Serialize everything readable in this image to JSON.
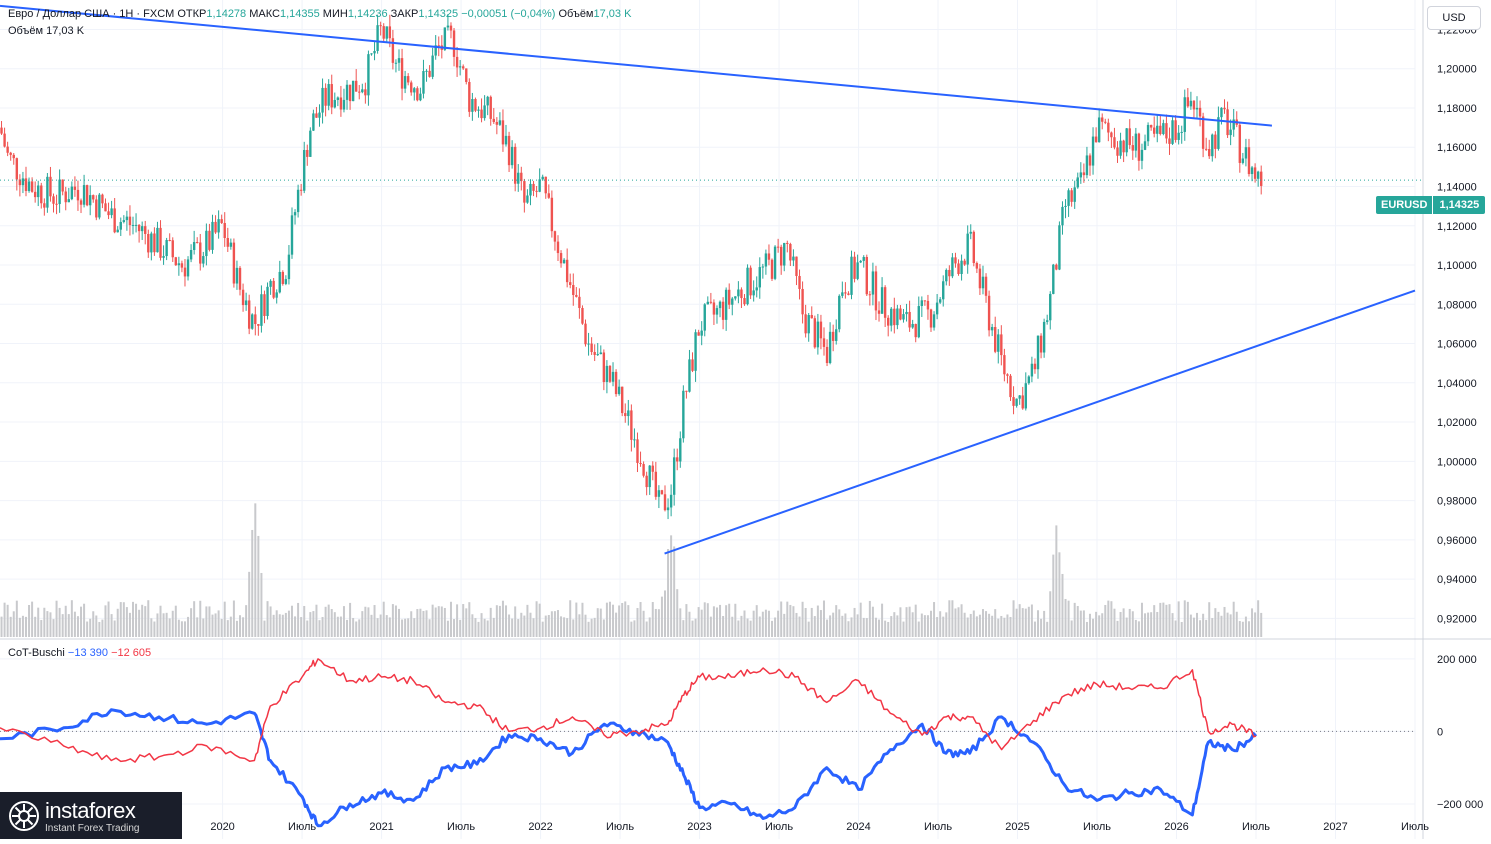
{
  "header": {
    "title": "Евро / Доллар США · 1Н · FXCM",
    "open_label": "ОТКР",
    "open_value": "1,14278",
    "high_label": "МАКС",
    "high_value": "1,14355",
    "low_label": "МИН",
    "low_value": "1,14236",
    "close_label": "ЗАКР",
    "close_value": "1,14325",
    "change_value": "−0,00051 (−0,04%)",
    "volume_label": "Объём",
    "volume_value": "17,03 K"
  },
  "volume_legend": {
    "label": "Объём",
    "value": "17,03 K"
  },
  "currency_button": "USD",
  "last_price_badge": {
    "symbol": "EURUSD",
    "price": "1,14325"
  },
  "cot_legend": {
    "name": "CoT-Buschi",
    "blue_value": "−13 390",
    "red_value": "−12 605"
  },
  "logo": {
    "name": "instaforex",
    "tagline": "Instant Forex Trading"
  },
  "colors": {
    "up_candle": "#26a69a",
    "down_candle": "#ef5350",
    "trendline": "#2962ff",
    "cot_blue": "#2962ff",
    "cot_red": "#f23645",
    "volume": "#c8c9cc"
  },
  "chart_data": [
    {
      "type": "candlestick",
      "symbol": "EURUSD",
      "price_axis_ticks": [
        "1,22000",
        "1,20000",
        "1,18000",
        "1,16000",
        "1,14000",
        "1,12000",
        "1,10000",
        "1,08000",
        "1,06000",
        "1,04000",
        "1,02000",
        "1,00000",
        "0,98000",
        "0,96000",
        "0,94000",
        "0,92000"
      ],
      "price_ticks_values": [
        1.22,
        1.2,
        1.18,
        1.16,
        1.14,
        1.12,
        1.1,
        1.08,
        1.06,
        1.04,
        1.02,
        1.0,
        0.98,
        0.96,
        0.94,
        0.92
      ],
      "ylim": [
        0.91,
        1.235
      ],
      "time_axis_labels": [
        "2020",
        "Июль",
        "2021",
        "Июль",
        "2022",
        "Июль",
        "2023",
        "Июль",
        "2024",
        "Июль",
        "2025",
        "Июль",
        "2026",
        "Июль",
        "2027",
        "Июль"
      ],
      "time_axis_values": [
        2020.0,
        2020.5,
        2021.0,
        2021.5,
        2022.0,
        2022.5,
        2023.0,
        2023.5,
        2024.0,
        2024.5,
        2025.0,
        2025.5,
        2026.0,
        2026.5,
        2027.0,
        2027.5
      ],
      "xlim": [
        2018.6,
        2027.5
      ],
      "last_price": 1.14325,
      "close_path": [
        [
          2018.6,
          1.17
        ],
        [
          2018.65,
          1.155
        ],
        [
          2018.8,
          1.14
        ],
        [
          2018.95,
          1.135
        ],
        [
          2019.1,
          1.14
        ],
        [
          2019.3,
          1.125
        ],
        [
          2019.45,
          1.12
        ],
        [
          2019.6,
          1.11
        ],
        [
          2019.75,
          1.1
        ],
        [
          2019.9,
          1.11
        ],
        [
          2020.0,
          1.12
        ],
        [
          2020.1,
          1.09
        ],
        [
          2020.2,
          1.07
        ],
        [
          2020.3,
          1.09
        ],
        [
          2020.4,
          1.1
        ],
        [
          2020.45,
          1.125
        ],
        [
          2020.55,
          1.17
        ],
        [
          2020.65,
          1.185
        ],
        [
          2020.8,
          1.19
        ],
        [
          2020.9,
          1.195
        ],
        [
          2021.0,
          1.22
        ],
        [
          2021.1,
          1.2
        ],
        [
          2021.25,
          1.19
        ],
        [
          2021.35,
          1.21
        ],
        [
          2021.45,
          1.215
        ],
        [
          2021.55,
          1.185
        ],
        [
          2021.7,
          1.175
        ],
        [
          2021.8,
          1.16
        ],
        [
          2021.9,
          1.13
        ],
        [
          2022.0,
          1.14
        ],
        [
          2022.15,
          1.1
        ],
        [
          2022.3,
          1.06
        ],
        [
          2022.45,
          1.04
        ],
        [
          2022.55,
          1.02
        ],
        [
          2022.65,
          1.0
        ],
        [
          2022.75,
          0.975
        ],
        [
          2022.82,
          0.985
        ],
        [
          2022.9,
          1.03
        ],
        [
          2023.0,
          1.07
        ],
        [
          2023.1,
          1.075
        ],
        [
          2023.3,
          1.09
        ],
        [
          2023.45,
          1.1
        ],
        [
          2023.55,
          1.11
        ],
        [
          2023.65,
          1.075
        ],
        [
          2023.8,
          1.055
        ],
        [
          2023.9,
          1.09
        ],
        [
          2024.0,
          1.1
        ],
        [
          2024.15,
          1.08
        ],
        [
          2024.3,
          1.07
        ],
        [
          2024.45,
          1.075
        ],
        [
          2024.6,
          1.1
        ],
        [
          2024.7,
          1.11
        ],
        [
          2024.8,
          1.08
        ],
        [
          2024.9,
          1.05
        ],
        [
          2025.0,
          1.03
        ],
        [
          2025.1,
          1.045
        ],
        [
          2025.2,
          1.08
        ],
        [
          2025.3,
          1.13
        ],
        [
          2025.4,
          1.14
        ],
        [
          2025.5,
          1.17
        ],
        [
          2025.6,
          1.165
        ],
        [
          2025.75,
          1.16
        ],
        [
          2025.9,
          1.165
        ],
        [
          2026.0,
          1.17
        ],
        [
          2026.1,
          1.185
        ],
        [
          2026.2,
          1.16
        ],
        [
          2026.3,
          1.175
        ],
        [
          2026.4,
          1.16
        ],
        [
          2026.5,
          1.145
        ],
        [
          2026.55,
          1.14325
        ]
      ],
      "trendlines": [
        {
          "name": "resistance",
          "from": [
            2018.6,
            1.232
          ],
          "to": [
            2026.6,
            1.171
          ]
        },
        {
          "name": "support",
          "from": [
            2022.78,
            0.953
          ],
          "to": [
            2027.5,
            1.087
          ]
        }
      ],
      "volume_spikes": [
        {
          "x": 2020.2,
          "relative": 1.0
        },
        {
          "x": 2022.82,
          "relative": 0.75
        },
        {
          "x": 2025.25,
          "relative": 0.8
        }
      ]
    },
    {
      "type": "line",
      "title": "CoT-Buschi",
      "axis_ticks": [
        "200 000",
        "0",
        "−200 000"
      ],
      "axis_values": [
        200000,
        0,
        -200000
      ],
      "ylim": [
        -280000,
        230000
      ],
      "series": [
        {
          "name": "blue",
          "color": "#2962ff",
          "points": [
            [
              2018.6,
              -20000
            ],
            [
              2019.0,
              10000
            ],
            [
              2019.3,
              60000
            ],
            [
              2019.6,
              40000
            ],
            [
              2019.9,
              20000
            ],
            [
              2020.2,
              50000
            ],
            [
              2020.3,
              -80000
            ],
            [
              2020.5,
              -180000
            ],
            [
              2020.6,
              -260000
            ],
            [
              2020.8,
              -200000
            ],
            [
              2021.0,
              -170000
            ],
            [
              2021.2,
              -190000
            ],
            [
              2021.4,
              -100000
            ],
            [
              2021.6,
              -90000
            ],
            [
              2021.8,
              -10000
            ],
            [
              2022.0,
              -20000
            ],
            [
              2022.2,
              -60000
            ],
            [
              2022.4,
              20000
            ],
            [
              2022.6,
              0
            ],
            [
              2022.8,
              -30000
            ],
            [
              2022.9,
              -120000
            ],
            [
              2023.0,
              -210000
            ],
            [
              2023.2,
              -200000
            ],
            [
              2023.4,
              -240000
            ],
            [
              2023.6,
              -210000
            ],
            [
              2023.8,
              -100000
            ],
            [
              2024.0,
              -160000
            ],
            [
              2024.2,
              -50000
            ],
            [
              2024.4,
              20000
            ],
            [
              2024.55,
              -60000
            ],
            [
              2024.7,
              -60000
            ],
            [
              2024.9,
              40000
            ],
            [
              2025.1,
              -30000
            ],
            [
              2025.3,
              -150000
            ],
            [
              2025.5,
              -190000
            ],
            [
              2025.7,
              -170000
            ],
            [
              2025.9,
              -160000
            ],
            [
              2026.1,
              -230000
            ],
            [
              2026.2,
              -30000
            ],
            [
              2026.35,
              -50000
            ],
            [
              2026.5,
              -13390
            ]
          ]
        },
        {
          "name": "red",
          "color": "#f23645",
          "points": [
            [
              2018.6,
              10000
            ],
            [
              2019.0,
              -40000
            ],
            [
              2019.3,
              -80000
            ],
            [
              2019.6,
              -70000
            ],
            [
              2019.9,
              -40000
            ],
            [
              2020.2,
              -80000
            ],
            [
              2020.3,
              70000
            ],
            [
              2020.5,
              150000
            ],
            [
              2020.6,
              200000
            ],
            [
              2020.8,
              140000
            ],
            [
              2021.0,
              150000
            ],
            [
              2021.2,
              140000
            ],
            [
              2021.4,
              80000
            ],
            [
              2021.6,
              70000
            ],
            [
              2021.8,
              0
            ],
            [
              2022.0,
              10000
            ],
            [
              2022.2,
              40000
            ],
            [
              2022.4,
              -10000
            ],
            [
              2022.6,
              0
            ],
            [
              2022.8,
              20000
            ],
            [
              2022.9,
              100000
            ],
            [
              2023.0,
              150000
            ],
            [
              2023.2,
              150000
            ],
            [
              2023.4,
              175000
            ],
            [
              2023.6,
              150000
            ],
            [
              2023.8,
              80000
            ],
            [
              2024.0,
              140000
            ],
            [
              2024.2,
              50000
            ],
            [
              2024.4,
              -10000
            ],
            [
              2024.55,
              40000
            ],
            [
              2024.7,
              40000
            ],
            [
              2024.9,
              -50000
            ],
            [
              2025.1,
              30000
            ],
            [
              2025.3,
              100000
            ],
            [
              2025.5,
              130000
            ],
            [
              2025.7,
              120000
            ],
            [
              2025.9,
              120000
            ],
            [
              2026.1,
              170000
            ],
            [
              2026.2,
              0
            ],
            [
              2026.35,
              20000
            ],
            [
              2026.5,
              -12605
            ]
          ]
        }
      ]
    }
  ]
}
